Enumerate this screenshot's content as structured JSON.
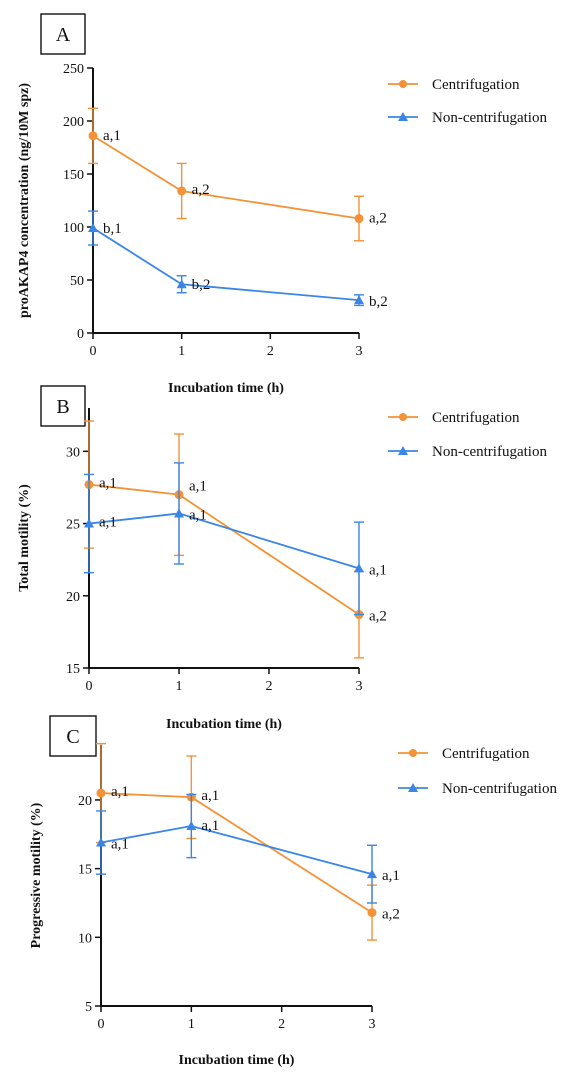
{
  "colors": {
    "Centrifugation": "#f39237",
    "Non-centrifugation": "#3a86e6",
    "axis": "#111111"
  },
  "chart_data": [
    {
      "panel_label": "A",
      "type": "line",
      "x": [
        0,
        1,
        3
      ],
      "xlabel": "Incubation time (h)",
      "ylabel": "proAKAP4 concentration (ng/10M spz)",
      "xlim": [
        0,
        3
      ],
      "ylim": [
        0,
        250
      ],
      "xticks": [
        0,
        1,
        2,
        3
      ],
      "yticks": [
        0,
        50,
        100,
        150,
        200,
        250
      ],
      "grid": false,
      "legend_position": "top-right",
      "series": [
        {
          "name": "Centrifugation",
          "marker": "circle",
          "values": [
            186,
            134,
            108
          ],
          "errors": [
            26,
            26,
            21
          ],
          "labels": [
            "a,1",
            "a,2",
            "a,2"
          ]
        },
        {
          "name": "Non-centrifugation",
          "marker": "triangle",
          "values": [
            99,
            46,
            31
          ],
          "errors": [
            16,
            8,
            5
          ],
          "labels": [
            "b,1",
            "b,2",
            "b,2"
          ]
        }
      ]
    },
    {
      "panel_label": "B",
      "type": "line",
      "x": [
        0,
        1,
        3
      ],
      "xlabel": "Incubation time (h)",
      "ylabel": "Total motility (%)",
      "xlim": [
        0,
        3
      ],
      "ylim": [
        15,
        33
      ],
      "xticks": [
        0,
        1,
        2,
        3
      ],
      "yticks": [
        15,
        20,
        25,
        30
      ],
      "grid": false,
      "legend_position": "top-right",
      "series": [
        {
          "name": "Centrifugation",
          "marker": "circle",
          "values": [
            27.7,
            27.0,
            18.7
          ],
          "errors": [
            4.4,
            4.2,
            3.0
          ],
          "labels": [
            "a,1",
            "a,1",
            "a,2"
          ]
        },
        {
          "name": "Non-centrifugation",
          "marker": "triangle",
          "values": [
            25.0,
            25.7,
            21.9
          ],
          "errors": [
            3.4,
            3.5,
            3.2
          ],
          "labels": [
            "a,1",
            "a,1",
            "a,1"
          ]
        }
      ]
    },
    {
      "panel_label": "C",
      "type": "line",
      "x": [
        0,
        1,
        3
      ],
      "xlabel": "Incubation time (h)",
      "ylabel": "Progressive motility (%)",
      "xlim": [
        0,
        3
      ],
      "ylim": [
        5,
        24
      ],
      "xticks": [
        0,
        1,
        2,
        3
      ],
      "yticks": [
        5,
        10,
        15,
        20
      ],
      "grid": false,
      "legend_position": "top-right",
      "series": [
        {
          "name": "Centrifugation",
          "marker": "circle",
          "values": [
            20.5,
            20.2,
            11.8
          ],
          "errors": [
            3.6,
            3.0,
            2.0
          ],
          "labels": [
            "a,1",
            "a,1",
            "a,2"
          ]
        },
        {
          "name": "Non-centrifugation",
          "marker": "triangle",
          "values": [
            16.9,
            18.1,
            14.6
          ],
          "errors": [
            2.3,
            2.3,
            2.1
          ],
          "labels": [
            "a,1",
            "a,1",
            "a,1"
          ]
        }
      ]
    }
  ]
}
